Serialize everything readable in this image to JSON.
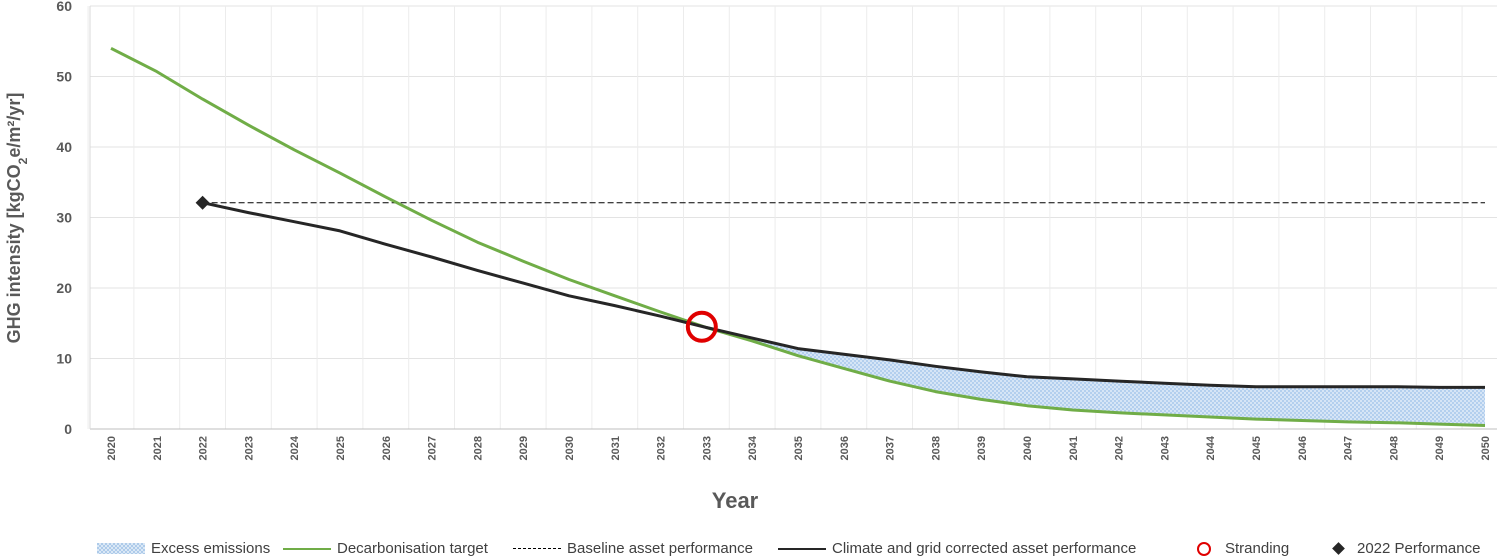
{
  "chart_data": {
    "type": "line",
    "xlabel": "Year",
    "ylabel": "GHG intensity [kgCO2e/m²/yr]",
    "ylabel_parts": {
      "pre": "GHG intensity [kgCO",
      "sub": "2",
      "post": "e/m²/yr]"
    },
    "ylim": [
      0,
      60
    ],
    "yticks": [
      0,
      10,
      20,
      30,
      40,
      50,
      60
    ],
    "xlim": [
      2020,
      2050
    ],
    "x": [
      2020,
      2021,
      2022,
      2023,
      2024,
      2025,
      2026,
      2027,
      2028,
      2029,
      2030,
      2031,
      2032,
      2033,
      2034,
      2035,
      2036,
      2037,
      2038,
      2039,
      2040,
      2041,
      2042,
      2043,
      2044,
      2045,
      2046,
      2047,
      2048,
      2049,
      2050
    ],
    "grid": true,
    "legend_position": "bottom",
    "series": [
      {
        "name": "Excess emissions",
        "kind": "area",
        "color": "#aecbea",
        "note_x_range": [
          2033,
          2050
        ]
      },
      {
        "name": "Decarbonisation target",
        "kind": "line",
        "color": "#70ad47",
        "x": [
          2020,
          2021,
          2022,
          2023,
          2024,
          2025,
          2026,
          2027,
          2028,
          2029,
          2030,
          2031,
          2032,
          2033,
          2034,
          2035,
          2036,
          2037,
          2038,
          2039,
          2040,
          2041,
          2042,
          2043,
          2044,
          2045,
          2046,
          2047,
          2048,
          2049,
          2050
        ],
        "y": [
          54.0,
          50.7,
          46.8,
          43.1,
          39.6,
          36.3,
          32.9,
          29.6,
          26.5,
          23.8,
          21.2,
          18.9,
          16.6,
          14.4,
          12.5,
          10.4,
          8.6,
          6.8,
          5.3,
          4.2,
          3.3,
          2.7,
          2.3,
          2.0,
          1.7,
          1.4,
          1.2,
          1.0,
          0.9,
          0.7,
          0.5
        ]
      },
      {
        "name": "Baseline asset performance",
        "kind": "dashed",
        "color": "#000000",
        "x": [
          2022,
          2050
        ],
        "y": [
          32.1,
          32.1
        ]
      },
      {
        "name": "Climate and grid corrected asset performance",
        "kind": "line",
        "color": "#262626",
        "x": [
          2022,
          2023,
          2024,
          2025,
          2026,
          2027,
          2028,
          2029,
          2030,
          2031,
          2032,
          2033,
          2034,
          2035,
          2036,
          2037,
          2038,
          2039,
          2040,
          2041,
          2042,
          2043,
          2044,
          2045,
          2046,
          2047,
          2048,
          2049,
          2050
        ],
        "y": [
          32.1,
          30.7,
          29.4,
          28.1,
          26.2,
          24.4,
          22.5,
          20.7,
          18.9,
          17.5,
          16.0,
          14.4,
          12.9,
          11.4,
          10.6,
          9.8,
          8.9,
          8.1,
          7.4,
          7.1,
          6.8,
          6.5,
          6.2,
          6.0,
          6.0,
          6.0,
          6.0,
          5.9,
          5.9
        ]
      },
      {
        "name": "Stranding",
        "kind": "marker-circle",
        "color": "#e00000",
        "x": [
          2032.9
        ],
        "y": [
          14.5
        ]
      },
      {
        "name": "2022 Performance",
        "kind": "marker-diamond",
        "color": "#262626",
        "x": [
          2022
        ],
        "y": [
          32.1
        ]
      }
    ]
  }
}
